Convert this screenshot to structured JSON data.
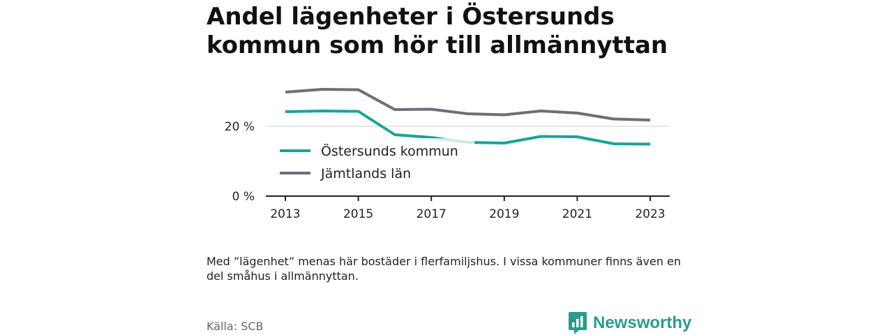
{
  "title": "Andel lägenheter i Östersunds kommun som hör till allmännyttan",
  "note": "Med ”lägenhet” menas här bostäder i flerfamiljshus. I vissa kommuner finns även en del småhus i allmännyttan.",
  "source": "Källa: SCB",
  "brand": {
    "name": "Newsworthy",
    "icon": "bar-chart-speech-bubble-icon",
    "color": "#2d9a8c"
  },
  "chart_data": {
    "type": "line",
    "x": [
      2013,
      2014,
      2015,
      2016,
      2017,
      2018,
      2019,
      2020,
      2021,
      2022,
      2023
    ],
    "x_ticks": [
      "2013",
      "2015",
      "2017",
      "2019",
      "2021",
      "2023"
    ],
    "y_ticks": [
      "0 %",
      "20 %"
    ],
    "y_tick_values": [
      0,
      20
    ],
    "ylim": [
      0,
      32
    ],
    "series": [
      {
        "name": "Östersunds kommun",
        "color": "#1aa398",
        "values": [
          24.2,
          24.4,
          24.3,
          17.6,
          16.8,
          15.4,
          15.2,
          17.1,
          17.0,
          15.0,
          14.9
        ]
      },
      {
        "name": "Jämtlands län",
        "color": "#6e6d78",
        "values": [
          29.8,
          30.6,
          30.5,
          24.8,
          24.9,
          23.6,
          23.3,
          24.4,
          23.8,
          22.1,
          21.8
        ]
      }
    ],
    "legend_position": "inside-top-left",
    "grid": true
  }
}
